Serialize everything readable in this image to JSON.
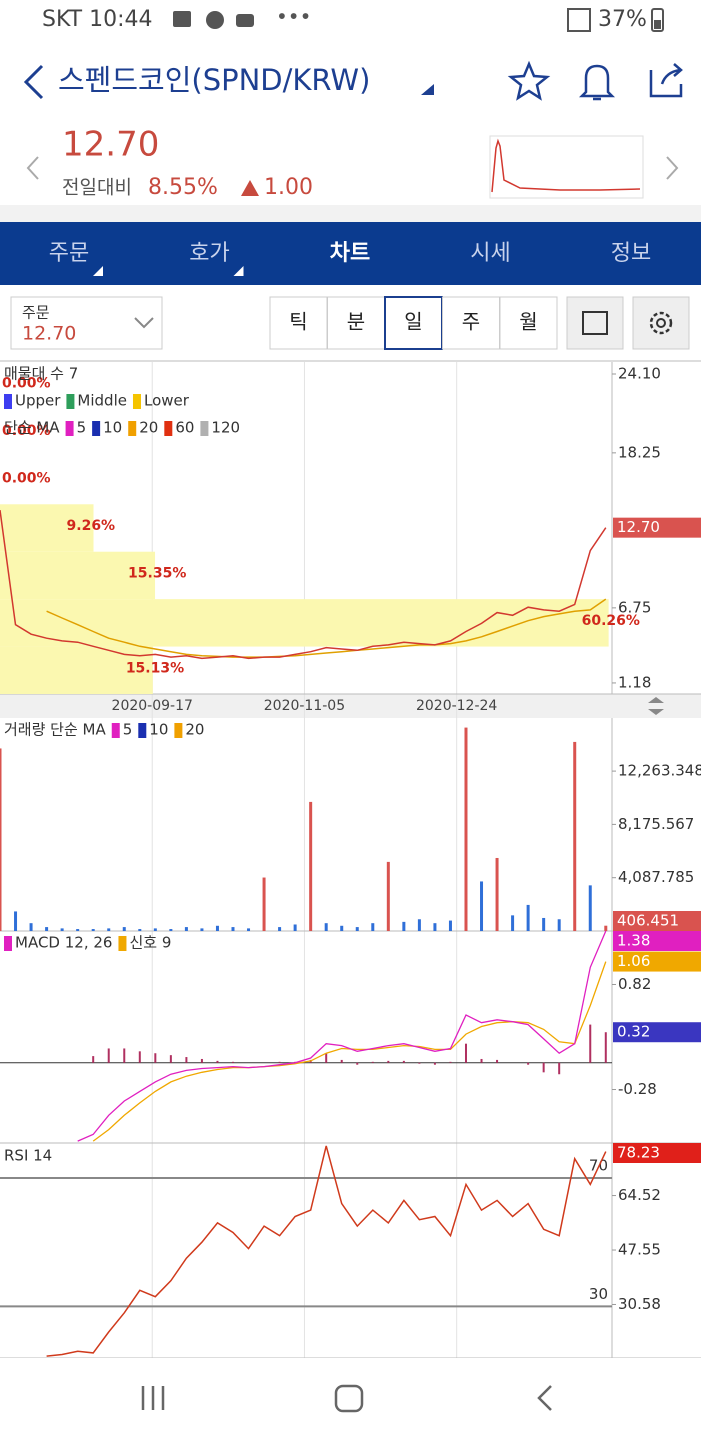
{
  "status_bar": {
    "left": "SKT 10:44",
    "battery": "37%"
  },
  "header": {
    "title": "스펜드코인(SPND/KRW)"
  },
  "quote": {
    "price": "12.70",
    "change_label": "전일대비",
    "change_pct": "8.55%",
    "change_abs": "1.00"
  },
  "tabs": {
    "items": [
      "주문",
      "호가",
      "차트",
      "시세",
      "정보"
    ],
    "active": 2
  },
  "order_box": {
    "label": "주문",
    "value": "12.70"
  },
  "periods": {
    "items": [
      "틱",
      "분",
      "일",
      "주",
      "월"
    ],
    "active": 2
  },
  "chart_data": {
    "type": "stock",
    "x": [
      0,
      5,
      10,
      15,
      20,
      25,
      30,
      35,
      40,
      45,
      50,
      55,
      60,
      65,
      70,
      75,
      80,
      85,
      90,
      95,
      100,
      105,
      110,
      115,
      120,
      125,
      130,
      135,
      140,
      145,
      150,
      155,
      160,
      165,
      170,
      175,
      180,
      185,
      190,
      195
    ],
    "xlim": [
      0,
      197
    ],
    "xticks": [
      {
        "value": 49,
        "label": "2020-09-17"
      },
      {
        "value": 98,
        "label": "2020-11-05"
      },
      {
        "value": 147,
        "label": "2020-12-24"
      }
    ],
    "panels": [
      {
        "type": "price",
        "title": "매물대 수 7",
        "legend": [
          {
            "label": "Upper",
            "color": "#3d3df0"
          },
          {
            "label": "Middle",
            "color": "#2e9e5b"
          },
          {
            "label": "Lower",
            "color": "#f5c400"
          }
        ],
        "ma_title": "단순 MA",
        "ma_legend": [
          {
            "label": "5",
            "color": "#e020c0"
          },
          {
            "label": "10",
            "color": "#1a2fb0"
          },
          {
            "label": "20",
            "color": "#f0a000"
          },
          {
            "label": "60",
            "color": "#e03010"
          },
          {
            "label": "120",
            "color": "#b0b0b0"
          }
        ],
        "ylim": [
          0.36,
          24.99
        ],
        "yticks": [
          {
            "value": 24.1,
            "label": "24.10"
          },
          {
            "value": 18.25,
            "label": "18.25"
          },
          {
            "value": 6.75,
            "label": "6.75"
          },
          {
            "value": 1.18,
            "label": "1.18"
          }
        ],
        "volume_profile": {
          "values": [
            0,
            0,
            0,
            9.26,
            15.35,
            60.26,
            15.13
          ],
          "value_labels": [
            "0.00%",
            "0.00%",
            "0.00%",
            "9.26%",
            "15.35%",
            "60.26%",
            "15.13%"
          ],
          "color": "#fbf8b0",
          "label_color": "#d0281c"
        },
        "close": {
          "color": "#d2382f",
          "values": [
            14.0,
            5.5,
            4.8,
            4.5,
            4.3,
            4.2,
            3.9,
            3.6,
            3.3,
            3.2,
            3.3,
            3.1,
            3.2,
            3.0,
            3.1,
            3.2,
            3.0,
            3.1,
            3.1,
            3.3,
            3.5,
            3.8,
            3.7,
            3.6,
            3.9,
            4.0,
            4.2,
            4.1,
            4.0,
            4.3,
            5.0,
            5.6,
            6.4,
            6.2,
            6.8,
            6.6,
            6.5,
            7.0,
            11.0,
            12.7
          ]
        },
        "ma": {
          "color": "#e0a000",
          "values": [
            null,
            null,
            null,
            6.5,
            6.0,
            5.5,
            5.0,
            4.5,
            4.2,
            3.9,
            3.7,
            3.5,
            3.3,
            3.2,
            3.15,
            3.1,
            3.1,
            3.1,
            3.15,
            3.2,
            3.3,
            3.4,
            3.5,
            3.6,
            3.7,
            3.8,
            3.9,
            4.0,
            4.0,
            4.1,
            4.3,
            4.6,
            5.0,
            5.4,
            5.8,
            6.1,
            6.3,
            6.5,
            6.6,
            7.4
          ]
        },
        "current": {
          "value": 12.7,
          "label": "12.70",
          "color": "#d9534f"
        }
      },
      {
        "type": "volume",
        "title": "거래량 단순 MA",
        "ma_legend": [
          {
            "label": "5",
            "color": "#e020c0"
          },
          {
            "label": "10",
            "color": "#1a2fb0"
          },
          {
            "label": "20",
            "color": "#f0a000"
          }
        ],
        "ylim": [
          0,
          16335
        ],
        "yticks": [
          {
            "value": 12263.348,
            "label": "12,263.348"
          },
          {
            "value": 8175.567,
            "label": "8,175.567"
          },
          {
            "value": 4087.785,
            "label": "4,087.785"
          }
        ],
        "values": [
          14000,
          1500,
          600,
          300,
          200,
          150,
          150,
          200,
          300,
          150,
          200,
          150,
          300,
          200,
          400,
          300,
          200,
          4100,
          300,
          500,
          9900,
          600,
          400,
          300,
          600,
          5300,
          700,
          900,
          600,
          800,
          15600,
          3800,
          5600,
          1200,
          2000,
          1000,
          900,
          14500,
          3500,
          406.451
        ],
        "colors": [
          "#d9534f",
          "#2f6fd8",
          "#2f6fd8",
          "#2f6fd8",
          "#2f6fd8",
          "#2f6fd8",
          "#2f6fd8",
          "#2f6fd8",
          "#2f6fd8",
          "#2f6fd8",
          "#2f6fd8",
          "#2f6fd8",
          "#2f6fd8",
          "#2f6fd8",
          "#2f6fd8",
          "#2f6fd8",
          "#2f6fd8",
          "#d9534f",
          "#2f6fd8",
          "#2f6fd8",
          "#d9534f",
          "#2f6fd8",
          "#2f6fd8",
          "#2f6fd8",
          "#2f6fd8",
          "#d9534f",
          "#2f6fd8",
          "#2f6fd8",
          "#2f6fd8",
          "#2f6fd8",
          "#d9534f",
          "#2f6fd8",
          "#d9534f",
          "#2f6fd8",
          "#2f6fd8",
          "#2f6fd8",
          "#2f6fd8",
          "#d9534f",
          "#2f6fd8",
          "#d9534f"
        ],
        "badge_color": "#d9534f"
      },
      {
        "type": "macd",
        "title": "MACD 12, 26",
        "title_color": "#e020c0",
        "signal_title": "신호 9",
        "signal_color": "#f0a800",
        "ylim": [
          -0.84,
          1.38
        ],
        "yticks": [
          0.82,
          -0.28
        ],
        "macd": [
          null,
          null,
          null,
          null,
          null,
          -0.82,
          -0.75,
          -0.55,
          -0.4,
          -0.3,
          -0.2,
          -0.12,
          -0.08,
          -0.06,
          -0.05,
          -0.04,
          -0.05,
          -0.04,
          -0.02,
          0.0,
          0.05,
          0.2,
          0.18,
          0.12,
          0.15,
          0.18,
          0.2,
          0.16,
          0.12,
          0.15,
          0.5,
          0.42,
          0.45,
          0.43,
          0.4,
          0.25,
          0.1,
          0.2,
          1.0,
          1.38
        ],
        "signal": [
          null,
          null,
          null,
          null,
          null,
          null,
          -0.82,
          -0.7,
          -0.55,
          -0.42,
          -0.3,
          -0.2,
          -0.14,
          -0.1,
          -0.07,
          -0.05,
          -0.05,
          -0.04,
          -0.03,
          -0.01,
          0.02,
          0.1,
          0.15,
          0.14,
          0.14,
          0.16,
          0.18,
          0.17,
          0.14,
          0.14,
          0.3,
          0.38,
          0.42,
          0.43,
          0.42,
          0.35,
          0.22,
          0.2,
          0.6,
          1.06
        ],
        "histogram": [
          null,
          null,
          null,
          null,
          null,
          null,
          0.07,
          0.15,
          0.15,
          0.12,
          0.1,
          0.08,
          0.06,
          0.04,
          0.02,
          0.01,
          0,
          0,
          0.01,
          0.01,
          0.03,
          0.1,
          0.03,
          -0.02,
          0.01,
          0.02,
          0.02,
          -0.01,
          -0.02,
          0.01,
          0.2,
          0.04,
          0.03,
          0,
          -0.02,
          -0.1,
          -0.12,
          0,
          0.4,
          0.32
        ],
        "histogram_color": "#b03060",
        "histogram_badge_color": "#3a36c0"
      },
      {
        "type": "rsi",
        "title": "RSI 14",
        "color": "#d03a1c",
        "ylim": [
          13.9,
          80.9
        ],
        "yticks": [
          64.52,
          47.55,
          30.58
        ],
        "levels": [
          70,
          30
        ],
        "values": [
          null,
          null,
          null,
          14.5,
          15,
          16,
          15.5,
          22,
          28,
          35,
          33,
          38,
          45,
          50,
          56,
          53,
          48,
          55,
          52,
          58,
          60,
          80,
          62,
          55,
          60,
          56,
          63,
          57,
          58,
          52,
          68,
          60,
          63,
          58,
          62,
          54,
          52,
          76,
          68,
          78.23
        ],
        "badge_color": "#e0201a"
      }
    ]
  }
}
